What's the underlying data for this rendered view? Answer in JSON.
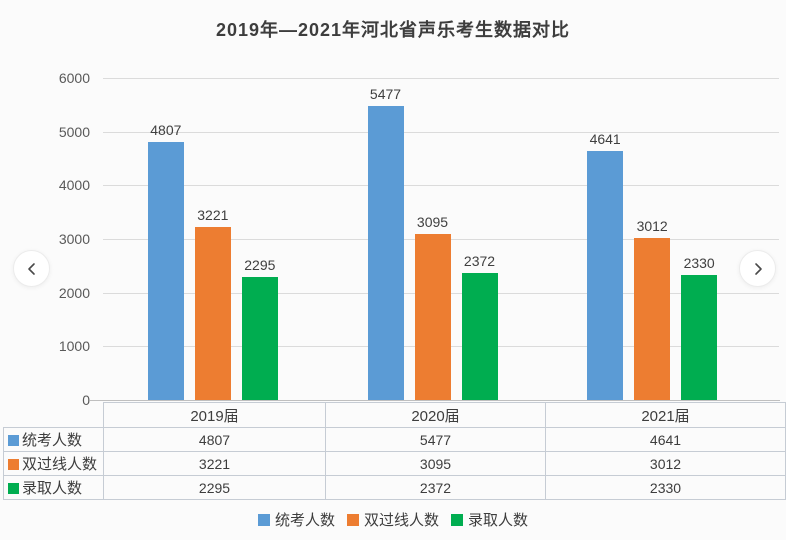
{
  "chart_data": {
    "type": "bar",
    "title": "2019年—2021年河北省声乐考生数据对比",
    "categories": [
      "2019届",
      "2020届",
      "2021届"
    ],
    "series": [
      {
        "name": "统考人数",
        "color": "#5B9BD5",
        "values": [
          4807,
          5477,
          4641
        ]
      },
      {
        "name": "双过线人数",
        "color": "#ED7D31",
        "values": [
          3221,
          3095,
          3012
        ]
      },
      {
        "name": "录取人数",
        "color": "#00AD50",
        "values": [
          2295,
          2372,
          2330
        ]
      }
    ],
    "xlabel": "",
    "ylabel": "",
    "ylim": [
      0,
      6000
    ],
    "yticks": [
      0,
      1000,
      2000,
      3000,
      4000,
      5000,
      6000
    ],
    "grid": true,
    "data_labels": true,
    "legend_position": "bottom",
    "table_below_chart": true
  },
  "nav": {
    "prev_icon": "chevron-left",
    "next_icon": "chevron-right"
  }
}
